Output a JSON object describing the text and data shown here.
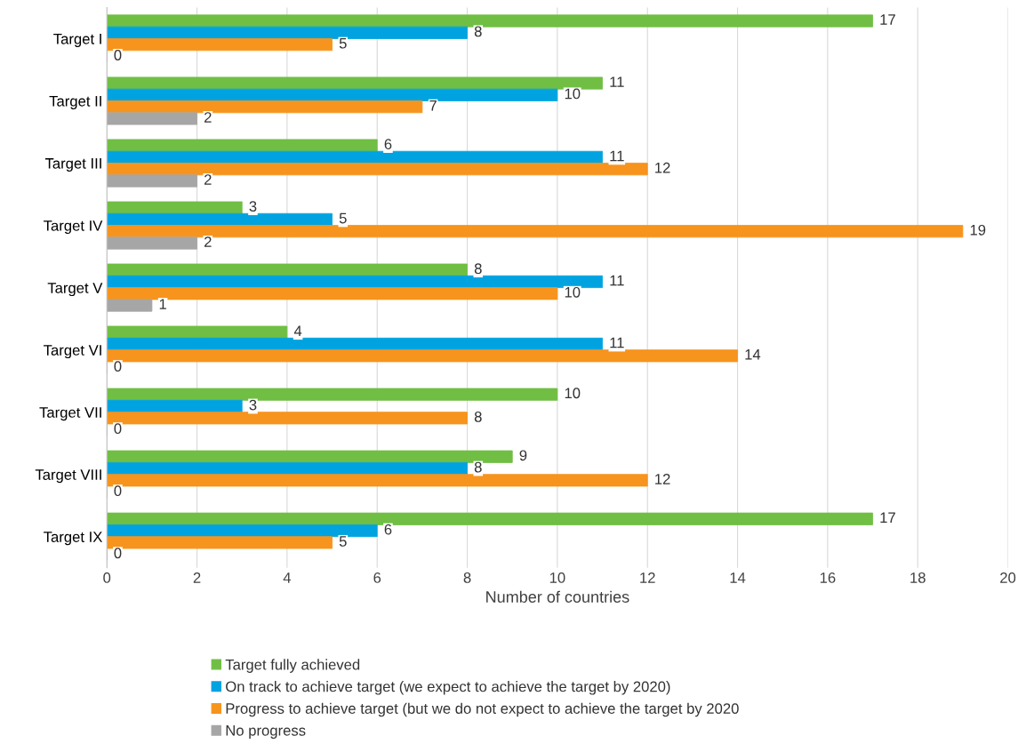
{
  "chart_data": {
    "type": "bar",
    "orientation": "horizontal",
    "xlabel": "Number of countries",
    "categories": [
      "Target I",
      "Target II",
      "Target III",
      "Target IV",
      "Target V",
      "Target VI",
      "Target VII",
      "Target VIII",
      "Target IX"
    ],
    "series": [
      {
        "name": "Target fully achieved",
        "color": "#70bf44",
        "values": [
          17,
          11,
          6,
          3,
          8,
          4,
          10,
          9,
          17
        ]
      },
      {
        "name": "On track to achieve target (we expect to achieve the target by 2020)",
        "color": "#00a3e0",
        "values": [
          8,
          10,
          11,
          5,
          11,
          11,
          3,
          8,
          6
        ]
      },
      {
        "name": "Progress to achieve target (but we do not expect to achieve the target by 2020",
        "color": "#f7941d",
        "values": [
          5,
          7,
          12,
          19,
          10,
          14,
          8,
          12,
          5
        ]
      },
      {
        "name": "No progress",
        "color": "#a6a6a6",
        "values": [
          0,
          2,
          2,
          2,
          1,
          0,
          0,
          0,
          0
        ]
      }
    ],
    "xlim": [
      0,
      20
    ],
    "xticks": [
      0,
      2,
      4,
      6,
      8,
      10,
      12,
      14,
      16,
      18,
      20
    ],
    "grid": "x",
    "legend": "bottom",
    "data_labels": true
  }
}
